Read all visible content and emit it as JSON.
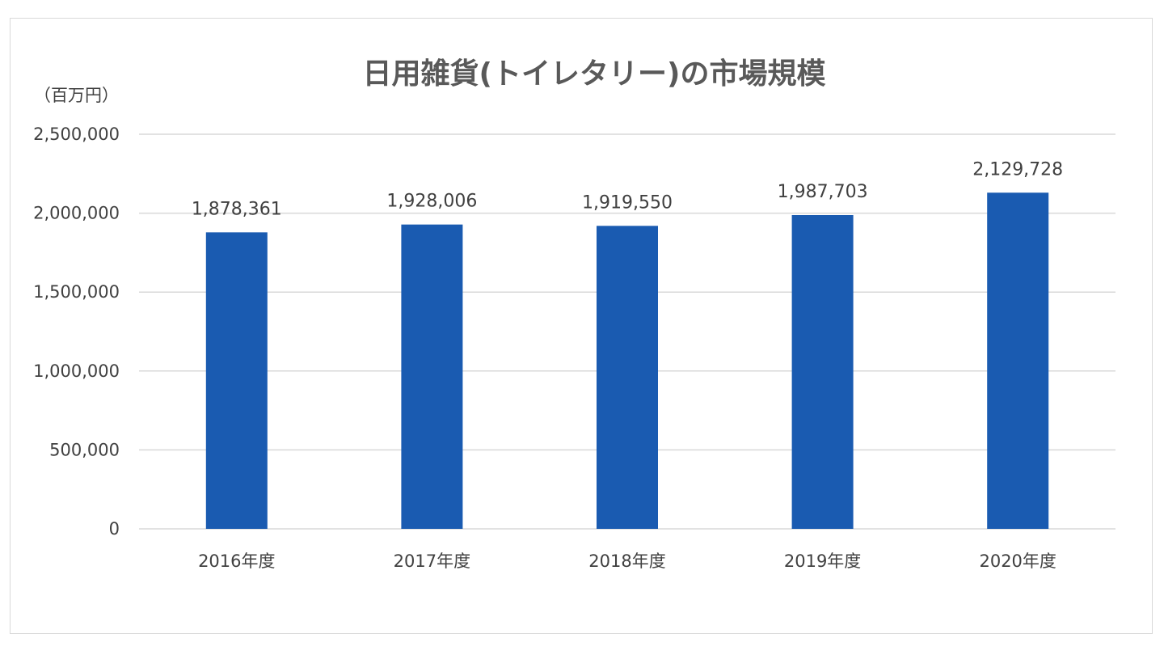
{
  "chart_data": {
    "type": "bar",
    "title": "日用雑貨(トイレタリー)の市場規模",
    "unit_label": "（百万円）",
    "categories": [
      "2016年度",
      "2017年度",
      "2018年度",
      "2019年度",
      "2020年度"
    ],
    "values": [
      1878361,
      1928006,
      1919550,
      1987703,
      2129728
    ],
    "data_labels": [
      "1,878,361",
      "1,928,006",
      "1,919,550",
      "1,987,703",
      "2,129,728"
    ],
    "y_ticks": [
      0,
      500000,
      1000000,
      1500000,
      2000000,
      2500000
    ],
    "y_tick_labels": [
      "0",
      "500,000",
      "1,000,000",
      "1,500,000",
      "2,000,000",
      "2,500,000"
    ],
    "ylim": [
      0,
      2500000
    ],
    "grid": true,
    "bar_color": "#1a5bb1",
    "grid_color": "#d9d9d9"
  }
}
